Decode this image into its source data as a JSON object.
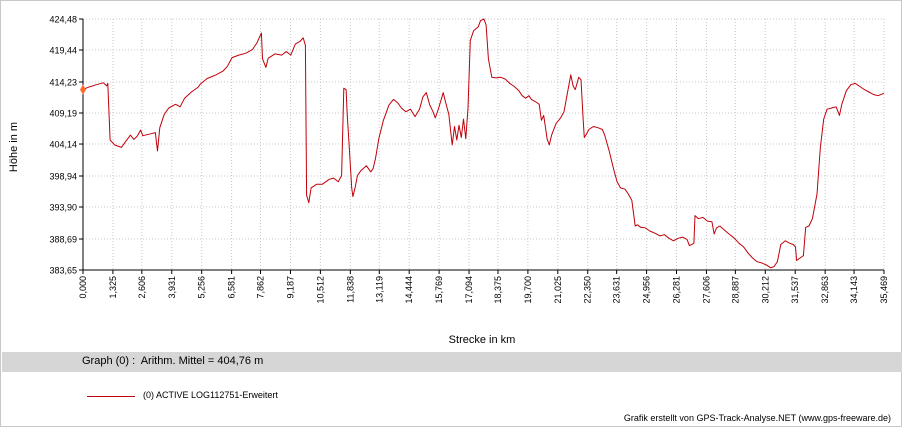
{
  "chart_data": {
    "type": "line",
    "xlabel": "Strecke  in  km",
    "ylabel": "Höhe  in  m",
    "xlim": [
      0.0,
      35.469
    ],
    "ylim": [
      383.65,
      424.48
    ],
    "x_ticks": [
      "0,000",
      "1,325",
      "2,606",
      "3,931",
      "5,256",
      "6,581",
      "7,862",
      "9,187",
      "10,512",
      "11,838",
      "13,119",
      "14,444",
      "15,769",
      "17,094",
      "18,375",
      "19,700",
      "21,025",
      "22,350",
      "23,631",
      "24,956",
      "26,281",
      "27,606",
      "28,887",
      "30,212",
      "31,537",
      "32,863",
      "34,143",
      "35,469"
    ],
    "x_tick_values": [
      0.0,
      1.325,
      2.606,
      3.931,
      5.256,
      6.581,
      7.862,
      9.187,
      10.512,
      11.838,
      13.119,
      14.444,
      15.769,
      17.094,
      18.375,
      19.7,
      21.025,
      22.35,
      23.631,
      24.956,
      26.281,
      27.606,
      28.887,
      30.212,
      31.537,
      32.863,
      34.143,
      35.469
    ],
    "y_ticks": [
      "424,48",
      "419,44",
      "414,23",
      "409,19",
      "404,14",
      "398,94",
      "393,90",
      "388,69",
      "383,65"
    ],
    "y_tick_values": [
      424.48,
      419.44,
      414.23,
      409.19,
      404.14,
      398.94,
      393.9,
      388.69,
      383.65
    ],
    "grid": true,
    "series": [
      {
        "name": "(0) ACTIVE LOG112751-Erweitert",
        "color": "#c0000a",
        "points": [
          [
            0.0,
            413.0
          ],
          [
            0.25,
            413.4
          ],
          [
            0.6,
            413.8
          ],
          [
            0.9,
            414.1
          ],
          [
            1.05,
            413.6
          ],
          [
            1.1,
            414.0
          ],
          [
            1.2,
            404.8
          ],
          [
            1.4,
            404.0
          ],
          [
            1.7,
            403.6
          ],
          [
            1.9,
            404.6
          ],
          [
            2.1,
            405.6
          ],
          [
            2.25,
            404.9
          ],
          [
            2.4,
            405.4
          ],
          [
            2.55,
            406.4
          ],
          [
            2.65,
            405.5
          ],
          [
            3.0,
            405.8
          ],
          [
            3.2,
            406.0
          ],
          [
            3.3,
            403.0
          ],
          [
            3.4,
            406.8
          ],
          [
            3.6,
            409.0
          ],
          [
            3.8,
            410.0
          ],
          [
            4.1,
            410.6
          ],
          [
            4.3,
            410.2
          ],
          [
            4.5,
            411.6
          ],
          [
            4.8,
            412.6
          ],
          [
            5.1,
            413.4
          ],
          [
            5.2,
            413.9
          ],
          [
            5.5,
            414.8
          ],
          [
            5.9,
            415.4
          ],
          [
            6.2,
            416.0
          ],
          [
            6.4,
            416.8
          ],
          [
            6.6,
            418.2
          ],
          [
            6.9,
            418.6
          ],
          [
            7.2,
            418.9
          ],
          [
            7.5,
            419.5
          ],
          [
            7.7,
            420.6
          ],
          [
            7.9,
            422.2
          ],
          [
            7.95,
            418.0
          ],
          [
            8.1,
            416.6
          ],
          [
            8.2,
            418.1
          ],
          [
            8.5,
            418.8
          ],
          [
            8.8,
            418.6
          ],
          [
            9.0,
            419.2
          ],
          [
            9.2,
            418.6
          ],
          [
            9.4,
            420.4
          ],
          [
            9.6,
            420.8
          ],
          [
            9.75,
            421.4
          ],
          [
            9.85,
            420.2
          ],
          [
            9.9,
            395.8
          ],
          [
            10.0,
            394.6
          ],
          [
            10.1,
            397.0
          ],
          [
            10.35,
            397.6
          ],
          [
            10.6,
            397.6
          ],
          [
            10.9,
            398.4
          ],
          [
            11.1,
            398.6
          ],
          [
            11.3,
            398.0
          ],
          [
            11.45,
            399.0
          ],
          [
            11.55,
            413.2
          ],
          [
            11.65,
            413.0
          ],
          [
            11.7,
            409.0
          ],
          [
            11.8,
            403.0
          ],
          [
            11.9,
            397.0
          ],
          [
            11.95,
            395.6
          ],
          [
            12.05,
            397.0
          ],
          [
            12.15,
            399.0
          ],
          [
            12.3,
            399.8
          ],
          [
            12.55,
            400.6
          ],
          [
            12.75,
            399.6
          ],
          [
            12.85,
            400.2
          ],
          [
            12.95,
            401.8
          ],
          [
            13.1,
            405.0
          ],
          [
            13.3,
            408.0
          ],
          [
            13.55,
            410.5
          ],
          [
            13.75,
            411.4
          ],
          [
            13.95,
            410.8
          ],
          [
            14.1,
            410.0
          ],
          [
            14.3,
            409.4
          ],
          [
            14.5,
            409.8
          ],
          [
            14.7,
            408.6
          ],
          [
            14.9,
            409.8
          ],
          [
            15.05,
            411.8
          ],
          [
            15.2,
            412.5
          ],
          [
            15.35,
            410.5
          ],
          [
            15.5,
            409.4
          ],
          [
            15.6,
            408.4
          ],
          [
            15.75,
            410.0
          ],
          [
            15.95,
            412.5
          ],
          [
            16.05,
            411.0
          ],
          [
            16.2,
            409.0
          ],
          [
            16.3,
            405.6
          ],
          [
            16.35,
            404.0
          ],
          [
            16.45,
            407.0
          ],
          [
            16.55,
            404.8
          ],
          [
            16.65,
            407.2
          ],
          [
            16.75,
            405.2
          ],
          [
            16.85,
            408.2
          ],
          [
            16.95,
            405.0
          ],
          [
            17.05,
            410.0
          ],
          [
            17.15,
            421.0
          ],
          [
            17.3,
            422.6
          ],
          [
            17.5,
            423.2
          ],
          [
            17.6,
            424.2
          ],
          [
            17.75,
            424.5
          ],
          [
            17.85,
            423.5
          ],
          [
            17.95,
            418.0
          ],
          [
            18.1,
            415.0
          ],
          [
            18.3,
            414.9
          ],
          [
            18.5,
            415.0
          ],
          [
            18.7,
            414.7
          ],
          [
            18.9,
            414.0
          ],
          [
            19.1,
            413.5
          ],
          [
            19.3,
            412.8
          ],
          [
            19.45,
            412.0
          ],
          [
            19.6,
            411.6
          ],
          [
            19.75,
            412.0
          ],
          [
            19.85,
            411.4
          ],
          [
            20.05,
            411.0
          ],
          [
            20.2,
            410.6
          ],
          [
            20.3,
            408.0
          ],
          [
            20.4,
            408.8
          ],
          [
            20.55,
            405.0
          ],
          [
            20.65,
            404.0
          ],
          [
            20.75,
            405.6
          ],
          [
            20.95,
            407.5
          ],
          [
            21.15,
            408.4
          ],
          [
            21.3,
            409.4
          ],
          [
            21.5,
            413.4
          ],
          [
            21.6,
            415.4
          ],
          [
            21.7,
            413.6
          ],
          [
            21.8,
            413.0
          ],
          [
            21.95,
            415.0
          ],
          [
            22.05,
            414.6
          ],
          [
            22.15,
            408.0
          ],
          [
            22.2,
            405.2
          ],
          [
            22.3,
            405.8
          ],
          [
            22.4,
            406.5
          ],
          [
            22.6,
            407.0
          ],
          [
            22.8,
            406.8
          ],
          [
            23.0,
            406.5
          ],
          [
            23.1,
            405.6
          ],
          [
            23.3,
            403.0
          ],
          [
            23.5,
            400.0
          ],
          [
            23.65,
            398.0
          ],
          [
            23.8,
            397.0
          ],
          [
            24.0,
            396.8
          ],
          [
            24.15,
            396.0
          ],
          [
            24.3,
            395.0
          ],
          [
            24.45,
            390.8
          ],
          [
            24.55,
            391.0
          ],
          [
            24.7,
            390.6
          ],
          [
            24.9,
            390.5
          ],
          [
            25.1,
            390.0
          ],
          [
            25.35,
            389.6
          ],
          [
            25.55,
            389.2
          ],
          [
            25.75,
            389.4
          ],
          [
            25.95,
            388.8
          ],
          [
            26.15,
            388.4
          ],
          [
            26.35,
            388.8
          ],
          [
            26.55,
            389.0
          ],
          [
            26.75,
            388.6
          ],
          [
            26.85,
            387.6
          ],
          [
            27.05,
            388.0
          ],
          [
            27.1,
            392.5
          ],
          [
            27.25,
            392.0
          ],
          [
            27.45,
            392.2
          ],
          [
            27.65,
            391.6
          ],
          [
            27.85,
            391.5
          ],
          [
            27.95,
            389.5
          ],
          [
            28.05,
            390.5
          ],
          [
            28.2,
            390.8
          ],
          [
            28.45,
            390.0
          ],
          [
            28.65,
            389.4
          ],
          [
            28.85,
            388.8
          ],
          [
            29.05,
            388.0
          ],
          [
            29.25,
            387.4
          ],
          [
            29.45,
            386.4
          ],
          [
            29.65,
            385.6
          ],
          [
            29.85,
            385.0
          ],
          [
            30.05,
            384.8
          ],
          [
            30.25,
            384.5
          ],
          [
            30.45,
            384.0
          ],
          [
            30.6,
            384.2
          ],
          [
            30.75,
            385.0
          ],
          [
            30.9,
            387.8
          ],
          [
            31.1,
            388.4
          ],
          [
            31.3,
            388.0
          ],
          [
            31.45,
            387.8
          ],
          [
            31.55,
            387.4
          ],
          [
            31.6,
            385.2
          ],
          [
            31.75,
            385.6
          ],
          [
            31.9,
            386.0
          ],
          [
            32.0,
            390.6
          ],
          [
            32.15,
            390.8
          ],
          [
            32.3,
            392.0
          ],
          [
            32.5,
            396.0
          ],
          [
            32.65,
            403.5
          ],
          [
            32.8,
            408.2
          ],
          [
            32.95,
            409.8
          ],
          [
            33.15,
            410.0
          ],
          [
            33.35,
            410.2
          ],
          [
            33.5,
            408.8
          ],
          [
            33.6,
            410.6
          ],
          [
            33.8,
            412.8
          ],
          [
            34.0,
            413.8
          ],
          [
            34.2,
            414.0
          ],
          [
            34.4,
            413.5
          ],
          [
            34.6,
            413.0
          ],
          [
            34.8,
            412.6
          ],
          [
            35.0,
            412.2
          ],
          [
            35.2,
            412.0
          ],
          [
            35.469,
            412.4
          ]
        ]
      }
    ]
  },
  "stats": {
    "text": "Graph (0) :  Arithm. Mittel = 404,76 m"
  },
  "legend": {
    "label": "(0) ACTIVE LOG112751-Erweitert"
  },
  "credit": "Grafik erstellt von GPS-Track-Analyse.NET (www.gps-freeware.de)"
}
